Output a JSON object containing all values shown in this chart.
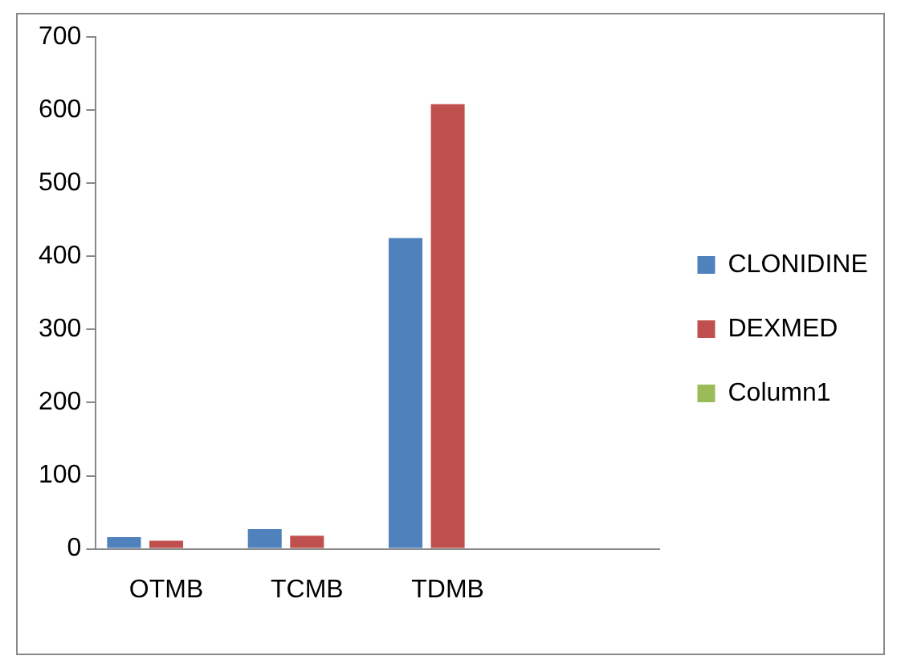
{
  "chart_data": {
    "type": "bar",
    "categories": [
      "OTMB",
      "TCMB",
      "TDMB",
      null
    ],
    "series": [
      {
        "name": "CLONIDINE",
        "color": "#4f81bd",
        "values": [
          16,
          27,
          425,
          null
        ]
      },
      {
        "name": "DEXMED",
        "color": "#c0504d",
        "values": [
          11,
          18,
          608,
          null
        ]
      },
      {
        "name": "Column1",
        "color": "#9bbb59",
        "values": [
          null,
          null,
          null,
          null
        ]
      }
    ],
    "ylim": [
      0,
      700
    ],
    "yticks": [
      0,
      100,
      200,
      300,
      400,
      500,
      600,
      700
    ],
    "grid": false,
    "legend": "right"
  }
}
